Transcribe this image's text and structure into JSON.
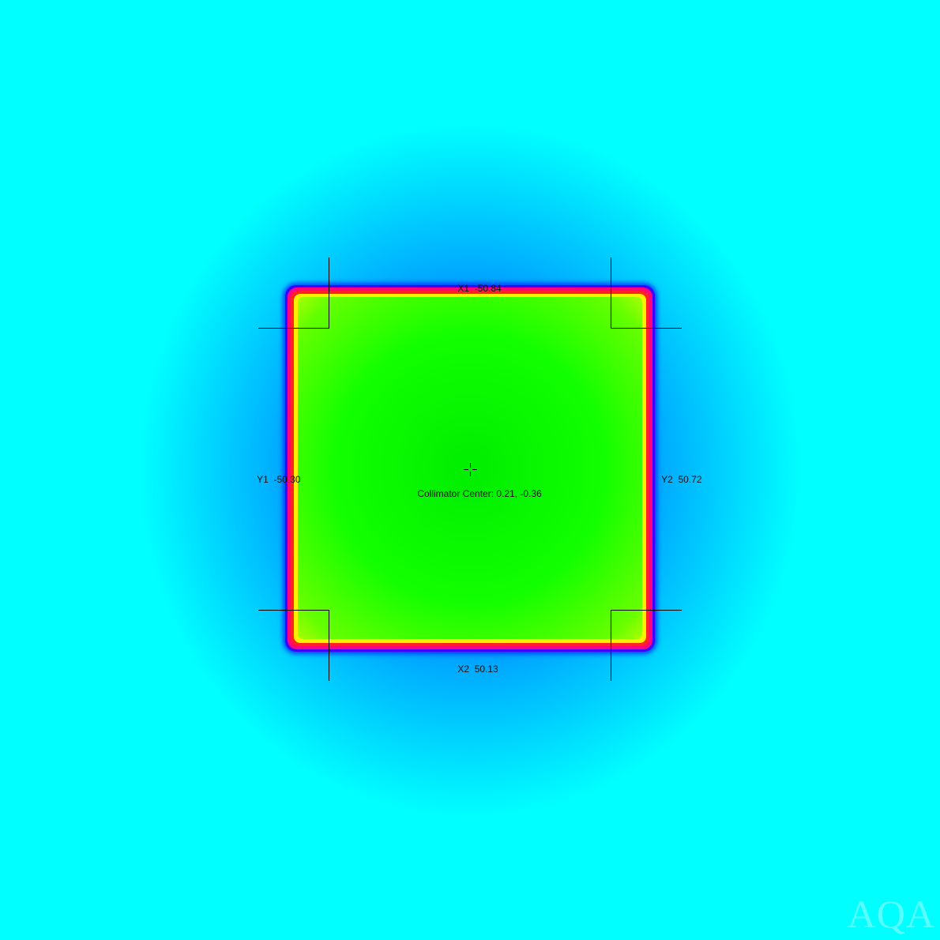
{
  "jaws": {
    "x1": {
      "name": "X1",
      "value": "-50.84"
    },
    "x2": {
      "name": "X2",
      "value": "50.13"
    },
    "y1": {
      "name": "Y1",
      "value": "-50.30"
    },
    "y2": {
      "name": "Y2",
      "value": "50.72"
    }
  },
  "collimator_center": {
    "label": "Collimator Center:",
    "value": "0.21, -0.36"
  },
  "watermark": "AQA",
  "colors": {
    "background": "#00ffff",
    "penumbra_blue": "#3b00ff",
    "penumbra_magenta": "#ff007f",
    "penumbra_red": "#ff2222",
    "penumbra_yellow": "#ffee00",
    "field_green": "#00ee00",
    "markers": "#000000"
  },
  "icons": {
    "center_marker": "crosshair-icon"
  }
}
